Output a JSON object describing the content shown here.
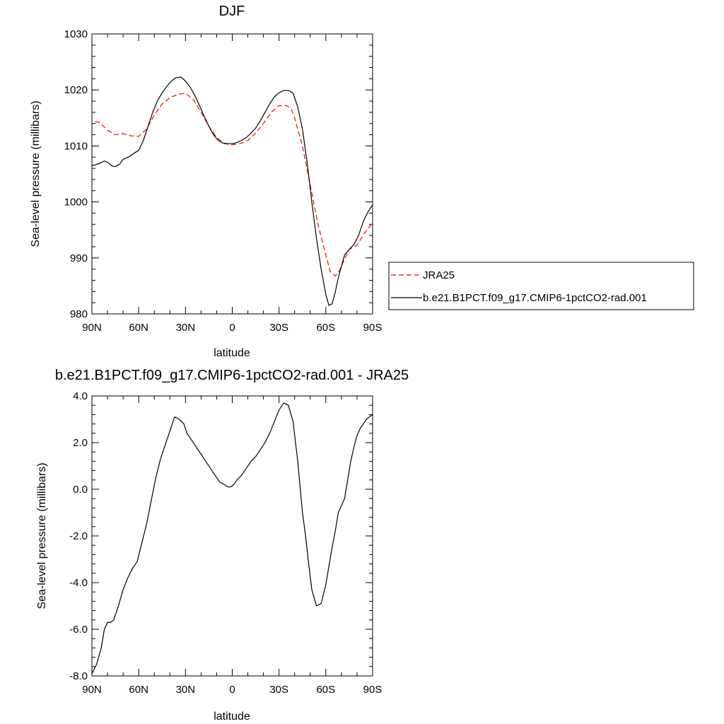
{
  "chart_data": [
    {
      "type": "line",
      "title": "DJF",
      "xlabel": "latitude",
      "ylabel": "Sea-level pressure (millibars)",
      "xlim": [
        90,
        -90
      ],
      "ylim": [
        980,
        1030
      ],
      "xticks": [
        90,
        60,
        30,
        0,
        -30,
        -60,
        -90
      ],
      "xtick_labels": [
        "90N",
        "60N",
        "30N",
        "0",
        "30S",
        "60S",
        "90S"
      ],
      "yticks": [
        980,
        990,
        1000,
        1010,
        1020,
        1030
      ],
      "ytick_labels": [
        "980",
        "990",
        "1000",
        "1010",
        "1020",
        "1030"
      ],
      "legend_position": "right",
      "series": [
        {
          "name": "JRA25",
          "color": "#ff0000",
          "style": "dashed",
          "x": [
            88,
            85,
            80,
            75,
            70,
            65,
            60,
            55,
            50,
            45,
            40,
            35,
            30,
            25,
            20,
            15,
            10,
            5,
            0,
            -5,
            -10,
            -15,
            -20,
            -25,
            -30,
            -35,
            -38,
            -40,
            -45,
            -50,
            -55,
            -60,
            -63,
            -66,
            -68,
            -70,
            -72,
            -75,
            -80,
            -85,
            -90
          ],
          "y": [
            1014.3,
            1014.2,
            1012.8,
            1012.0,
            1012.2,
            1011.8,
            1011.7,
            1013.0,
            1015.5,
            1017.5,
            1018.6,
            1019.2,
            1019.4,
            1018.3,
            1016.0,
            1013.5,
            1011.5,
            1010.4,
            1010.2,
            1010.4,
            1011.0,
            1012.3,
            1014.0,
            1016.0,
            1017.2,
            1017.2,
            1016.5,
            1015.0,
            1010.0,
            1003.0,
            996.0,
            990.5,
            987.5,
            986.8,
            987.3,
            988.5,
            989.8,
            991.5,
            992.3,
            994.5,
            996.3
          ]
        },
        {
          "name": "b.e21.B1PCT.f09_g17.CMIP6-1pctCO2-rad.001",
          "color": "#000000",
          "style": "solid",
          "x": [
            90,
            88,
            85,
            82,
            80,
            77,
            75,
            72,
            70,
            66,
            63,
            60,
            57,
            54,
            51,
            48,
            45,
            42,
            39,
            36,
            33,
            30,
            27,
            24,
            21,
            18,
            15,
            12,
            9,
            6,
            3,
            0,
            -3,
            -6,
            -9,
            -12,
            -15,
            -18,
            -21,
            -24,
            -27,
            -30,
            -33,
            -36,
            -37,
            -39,
            -42,
            -45,
            -48,
            -51,
            -54,
            -57,
            -60,
            -62,
            -64,
            -66,
            -68,
            -70,
            -72,
            -75,
            -78,
            -81,
            -84,
            -87,
            -90
          ],
          "y": [
            1006.5,
            1006.6,
            1006.9,
            1007.3,
            1007.1,
            1006.4,
            1006.3,
            1006.8,
            1007.6,
            1008.1,
            1008.7,
            1009.2,
            1011.0,
            1013.5,
            1016.0,
            1018.0,
            1019.5,
            1020.6,
            1021.6,
            1022.2,
            1022.3,
            1021.6,
            1020.5,
            1019.0,
            1017.2,
            1015.3,
            1013.5,
            1012.0,
            1011.0,
            1010.5,
            1010.4,
            1010.4,
            1010.6,
            1011.0,
            1011.5,
            1012.3,
            1013.2,
            1014.5,
            1016.0,
            1017.5,
            1018.8,
            1019.5,
            1019.9,
            1019.9,
            1019.8,
            1019.4,
            1017.0,
            1013.0,
            1007.0,
            1000.0,
            993.5,
            988.0,
            983.5,
            981.5,
            981.8,
            983.8,
            986.5,
            988.5,
            990.5,
            991.5,
            992.4,
            994.0,
            996.5,
            998.2,
            999.5
          ]
        }
      ]
    },
    {
      "type": "line",
      "title": "b.e21.B1PCT.f09_g17.CMIP6-1pctCO2-rad.001 - JRA25",
      "xlabel": "latitude",
      "ylabel": "Sea-level pressure (millibars)",
      "xlim": [
        90,
        -90
      ],
      "ylim": [
        -8.0,
        4.0
      ],
      "xticks": [
        90,
        60,
        30,
        0,
        -30,
        -60,
        -90
      ],
      "xtick_labels": [
        "90N",
        "60N",
        "30N",
        "0",
        "30S",
        "60S",
        "90S"
      ],
      "yticks": [
        -8,
        -6,
        -4,
        -2,
        0,
        2,
        4
      ],
      "ytick_labels": [
        "-8.0",
        "-6.0",
        "-4.0",
        "-2.0",
        "0.0",
        "2.0",
        "4.0"
      ],
      "series": [
        {
          "color": "#000000",
          "style": "solid",
          "x": [
            90,
            87,
            84,
            82,
            80,
            78,
            76,
            73,
            70,
            67,
            64,
            61,
            58,
            55,
            52,
            49,
            46,
            43,
            40,
            37,
            34,
            31,
            29,
            26,
            23,
            20,
            17,
            14,
            11,
            8,
            5,
            3,
            1,
            -1,
            -3,
            -6,
            -9,
            -12,
            -15,
            -18,
            -21,
            -24,
            -27,
            -30,
            -33,
            -36,
            -39,
            -42,
            -45,
            -47,
            -49,
            -51,
            -54,
            -57,
            -60,
            -62,
            -64,
            -66,
            -68,
            -70,
            -72,
            -74,
            -76,
            -78,
            -80,
            -82,
            -84,
            -86,
            -88,
            -90
          ],
          "y": [
            -7.9,
            -7.5,
            -6.8,
            -6.0,
            -5.7,
            -5.7,
            -5.6,
            -5.0,
            -4.3,
            -3.8,
            -3.4,
            -3.1,
            -2.3,
            -1.5,
            -0.5,
            0.5,
            1.3,
            1.9,
            2.5,
            3.1,
            3.0,
            2.8,
            2.4,
            2.1,
            1.8,
            1.5,
            1.2,
            0.9,
            0.6,
            0.3,
            0.2,
            0.1,
            0.1,
            0.2,
            0.4,
            0.6,
            0.9,
            1.2,
            1.4,
            1.7,
            2.0,
            2.4,
            2.9,
            3.4,
            3.7,
            3.6,
            2.9,
            1.2,
            -1.0,
            -2.0,
            -3.2,
            -4.3,
            -5.0,
            -4.9,
            -4.1,
            -3.3,
            -2.5,
            -1.8,
            -1.0,
            -0.7,
            -0.4,
            0.4,
            1.2,
            1.8,
            2.3,
            2.6,
            2.8,
            3.0,
            3.1,
            3.2
          ]
        }
      ]
    }
  ]
}
